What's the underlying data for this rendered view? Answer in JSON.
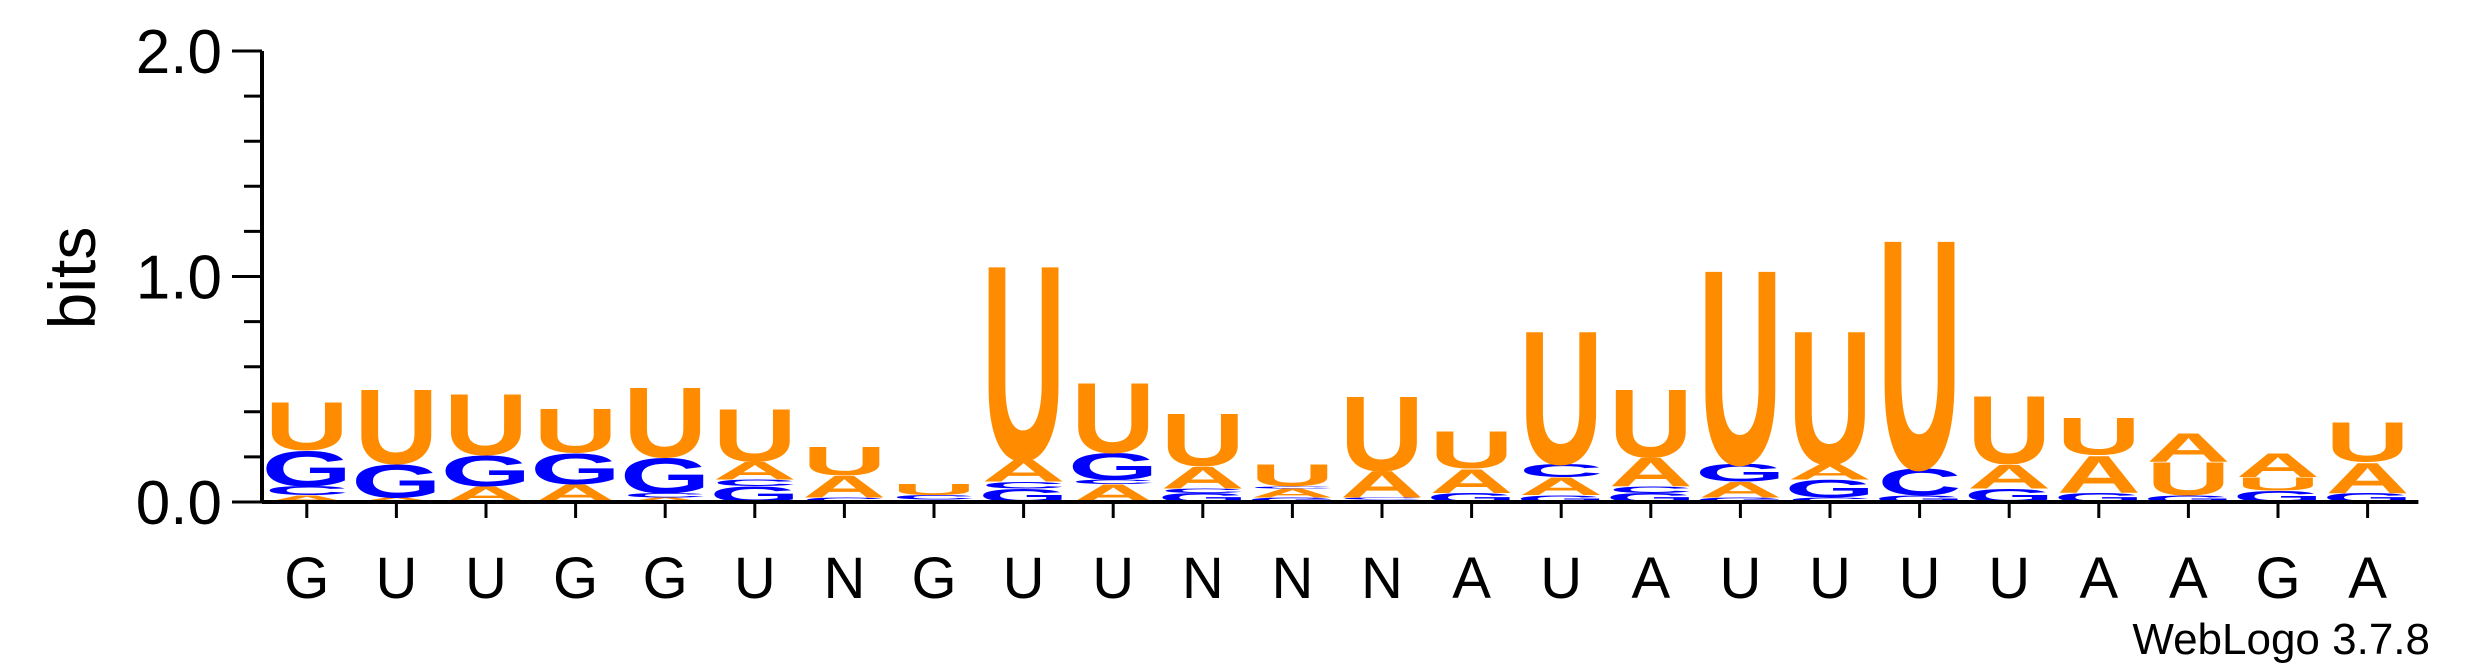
{
  "chart_data": {
    "type": "sequence_logo",
    "ylabel": "bits",
    "ylim": [
      0,
      2.0
    ],
    "yticks": [
      "0.0",
      "1.0",
      "2.0"
    ],
    "credit": "WebLogo 3.7.8",
    "colors": {
      "U": "#ff8c00",
      "A": "#ff8c00",
      "G": "#0000ff",
      "C": "#0000ff"
    },
    "positions": [
      {
        "label": "G",
        "stack": [
          {
            "l": "A",
            "h": 0.03
          },
          {
            "l": "C",
            "h": 0.04
          },
          {
            "l": "G",
            "h": 0.16
          },
          {
            "l": "U",
            "h": 0.22
          }
        ]
      },
      {
        "label": "U",
        "stack": [
          {
            "l": "A",
            "h": 0.02
          },
          {
            "l": "G",
            "h": 0.15
          },
          {
            "l": "U",
            "h": 0.34
          }
        ]
      },
      {
        "label": "U",
        "stack": [
          {
            "l": "A",
            "h": 0.07
          },
          {
            "l": "G",
            "h": 0.14
          },
          {
            "l": "U",
            "h": 0.28
          }
        ]
      },
      {
        "label": "G",
        "stack": [
          {
            "l": "A",
            "h": 0.08
          },
          {
            "l": "G",
            "h": 0.14
          },
          {
            "l": "U",
            "h": 0.2
          }
        ]
      },
      {
        "label": "G",
        "stack": [
          {
            "l": "A",
            "h": 0.02
          },
          {
            "l": "C",
            "h": 0.02
          },
          {
            "l": "G",
            "h": 0.16
          },
          {
            "l": "U",
            "h": 0.32
          }
        ]
      },
      {
        "label": "U",
        "stack": [
          {
            "l": "G",
            "h": 0.07
          },
          {
            "l": "C",
            "h": 0.03
          },
          {
            "l": "A",
            "h": 0.08
          },
          {
            "l": "U",
            "h": 0.24
          }
        ]
      },
      {
        "label": "N",
        "stack": [
          {
            "l": "C",
            "h": 0.02
          },
          {
            "l": "A",
            "h": 0.1
          },
          {
            "l": "U",
            "h": 0.13
          }
        ]
      },
      {
        "label": "G",
        "stack": [
          {
            "l": "G",
            "h": 0.01
          },
          {
            "l": "C",
            "h": 0.02
          },
          {
            "l": "U",
            "h": 0.05
          }
        ]
      },
      {
        "label": "U",
        "stack": [
          {
            "l": "G",
            "h": 0.06
          },
          {
            "l": "C",
            "h": 0.03
          },
          {
            "l": "A",
            "h": 0.1
          },
          {
            "l": "U",
            "h": 0.89
          }
        ]
      },
      {
        "label": "U",
        "stack": [
          {
            "l": "A",
            "h": 0.08
          },
          {
            "l": "C",
            "h": 0.02
          },
          {
            "l": "G",
            "h": 0.12
          },
          {
            "l": "U",
            "h": 0.32
          }
        ]
      },
      {
        "label": "N",
        "stack": [
          {
            "l": "G",
            "h": 0.04
          },
          {
            "l": "C",
            "h": 0.02
          },
          {
            "l": "A",
            "h": 0.1
          },
          {
            "l": "U",
            "h": 0.24
          }
        ]
      },
      {
        "label": "N",
        "stack": [
          {
            "l": "G",
            "h": 0.02
          },
          {
            "l": "A",
            "h": 0.04
          },
          {
            "l": "C",
            "h": 0.01
          },
          {
            "l": "U",
            "h": 0.1
          }
        ]
      },
      {
        "label": "N",
        "stack": [
          {
            "l": "G",
            "h": 0.01
          },
          {
            "l": "C",
            "h": 0.01
          },
          {
            "l": "A",
            "h": 0.12
          },
          {
            "l": "U",
            "h": 0.34
          }
        ]
      },
      {
        "label": "A",
        "stack": [
          {
            "l": "G",
            "h": 0.04
          },
          {
            "l": "A",
            "h": 0.11
          },
          {
            "l": "U",
            "h": 0.17
          }
        ]
      },
      {
        "label": "U",
        "stack": [
          {
            "l": "G",
            "h": 0.03
          },
          {
            "l": "A",
            "h": 0.08
          },
          {
            "l": "C",
            "h": 0.06
          },
          {
            "l": "U",
            "h": 0.61
          }
        ]
      },
      {
        "label": "A",
        "stack": [
          {
            "l": "G",
            "h": 0.04
          },
          {
            "l": "C",
            "h": 0.03
          },
          {
            "l": "A",
            "h": 0.13
          },
          {
            "l": "U",
            "h": 0.31
          }
        ]
      },
      {
        "label": "U",
        "stack": [
          {
            "l": "G",
            "h": 0.02
          },
          {
            "l": "A",
            "h": 0.07
          },
          {
            "l": "G",
            "h": 0.08
          },
          {
            "l": "U",
            "h": 0.89
          }
        ]
      },
      {
        "label": "U",
        "stack": [
          {
            "l": "C",
            "h": 0.02
          },
          {
            "l": "G",
            "h": 0.08
          },
          {
            "l": "A",
            "h": 0.07
          },
          {
            "l": "U",
            "h": 0.61
          }
        ]
      },
      {
        "label": "U",
        "stack": [
          {
            "l": "G",
            "h": 0.03
          },
          {
            "l": "C",
            "h": 0.12
          },
          {
            "l": "U",
            "h": 1.05
          }
        ]
      },
      {
        "label": "U",
        "stack": [
          {
            "l": "G",
            "h": 0.06
          },
          {
            "l": "A",
            "h": 0.11
          },
          {
            "l": "U",
            "h": 0.31
          }
        ]
      },
      {
        "label": "A",
        "stack": [
          {
            "l": "G",
            "h": 0.04
          },
          {
            "l": "A",
            "h": 0.17
          },
          {
            "l": "U",
            "h": 0.17
          }
        ]
      },
      {
        "label": "A",
        "stack": [
          {
            "l": "G",
            "h": 0.03
          },
          {
            "l": "U",
            "h": 0.15
          },
          {
            "l": "A",
            "h": 0.13
          }
        ]
      },
      {
        "label": "G",
        "stack": [
          {
            "l": "G",
            "h": 0.05
          },
          {
            "l": "U",
            "h": 0.06
          },
          {
            "l": "A",
            "h": 0.11
          }
        ]
      },
      {
        "label": "A",
        "stack": [
          {
            "l": "G",
            "h": 0.04
          },
          {
            "l": "A",
            "h": 0.14
          },
          {
            "l": "U",
            "h": 0.18
          }
        ]
      }
    ]
  }
}
